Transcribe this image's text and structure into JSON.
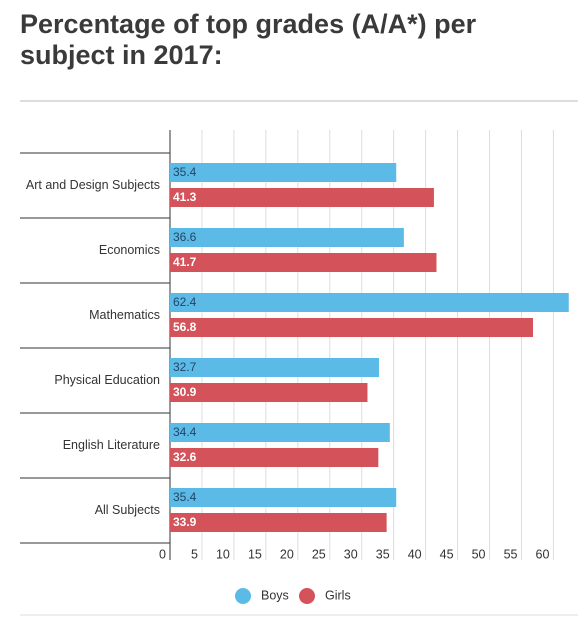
{
  "chart_data": {
    "type": "bar",
    "orientation": "horizontal",
    "title": "Percentage of top grades (A/A*) per subject in 2017:",
    "categories": [
      "Art and Design Subjects",
      "Economics",
      "Mathematics",
      "Physical Education",
      "English Literature",
      "All Subjects"
    ],
    "series": [
      {
        "name": "Boys",
        "color": "#5bbbe6",
        "values": [
          35.4,
          36.6,
          62.4,
          32.7,
          34.4,
          35.4
        ]
      },
      {
        "name": "Girls",
        "color": "#d4525a",
        "values": [
          41.3,
          41.7,
          56.8,
          30.9,
          32.6,
          33.9
        ]
      }
    ],
    "xlim": [
      0,
      63
    ],
    "xticks": [
      0,
      5,
      10,
      15,
      20,
      25,
      30,
      35,
      40,
      45,
      50,
      55,
      60
    ],
    "grid": true,
    "legend": "bottom"
  }
}
